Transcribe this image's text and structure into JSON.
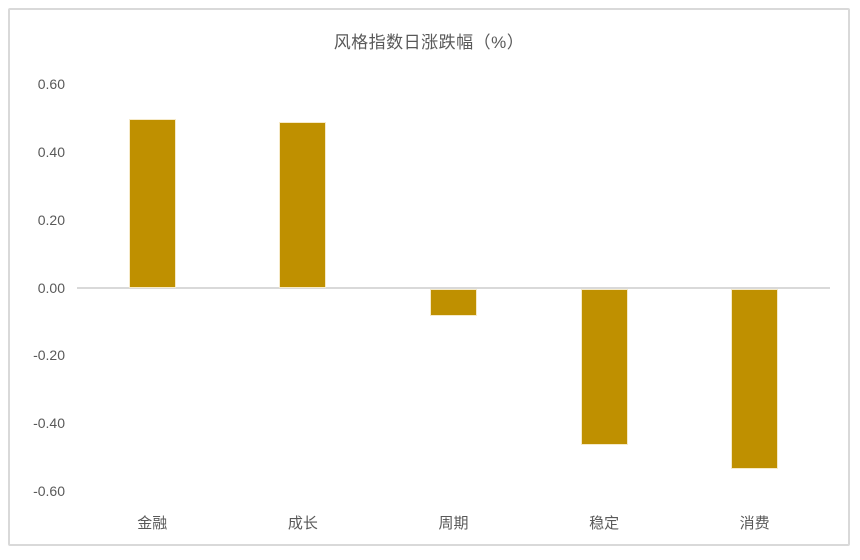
{
  "chart_data": {
    "type": "bar",
    "title": "风格指数日涨跌幅（%）",
    "categories": [
      "金融",
      "成长",
      "周期",
      "稳定",
      "消费"
    ],
    "values": [
      0.5,
      0.49,
      -0.08,
      -0.46,
      -0.53
    ],
    "y_ticks": [
      "0.60",
      "0.40",
      "0.20",
      "0.00",
      "-0.20",
      "-0.40",
      "-0.60"
    ],
    "ylim": [
      -0.6,
      0.6
    ],
    "xlabel": "",
    "ylabel": "",
    "grid": false,
    "legend": false,
    "bar_color": "#BF9000",
    "axis_line_color": "#D9D9D9",
    "text_color": "#595959",
    "frame_border_color": "#D9D9D9",
    "background_color": "#FFFFFF"
  }
}
